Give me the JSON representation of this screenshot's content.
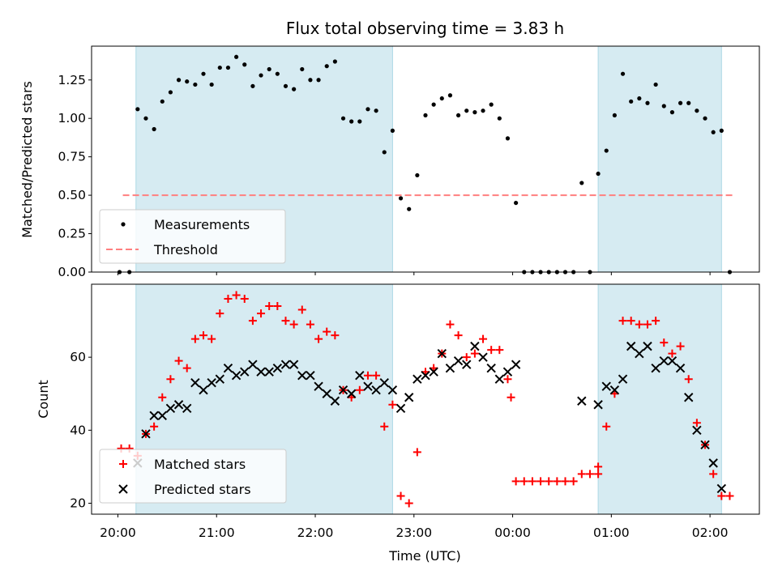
{
  "chart_data": [
    {
      "type": "scatter",
      "title": "Flux total observing time = 3.83 h",
      "xlabel": "",
      "ylabel": "Matched/Predicted stars",
      "ylim": [
        0,
        1.47
      ],
      "yticks": [
        "0.00",
        "0.25",
        "0.50",
        "0.75",
        "1.00",
        "1.25"
      ],
      "xlim": [
        "19:44",
        "02:30"
      ],
      "xticks": [
        "20:00",
        "21:00",
        "22:00",
        "23:00",
        "00:00",
        "01:00",
        "02:00"
      ],
      "shaded_intervals": [
        [
          "20:11",
          "22:47"
        ],
        [
          "00:52",
          "02:07"
        ]
      ],
      "threshold": 0.5,
      "legend": {
        "placement": "lower-left",
        "entries": [
          "Measurements",
          "Threshold"
        ]
      },
      "colors": {
        "measurements": "#000000",
        "threshold": "#ff7f7f",
        "shade": "#add8e6"
      },
      "series": [
        {
          "name": "Measurements",
          "points": [
            [
              "20:01",
              0.0
            ],
            [
              "20:07",
              0.0
            ],
            [
              "20:12",
              1.06
            ],
            [
              "20:17",
              1.0
            ],
            [
              "20:22",
              0.93
            ],
            [
              "20:27",
              1.11
            ],
            [
              "20:32",
              1.17
            ],
            [
              "20:37",
              1.25
            ],
            [
              "20:42",
              1.24
            ],
            [
              "20:47",
              1.22
            ],
            [
              "20:52",
              1.29
            ],
            [
              "20:57",
              1.22
            ],
            [
              "21:02",
              1.33
            ],
            [
              "21:07",
              1.33
            ],
            [
              "21:12",
              1.4
            ],
            [
              "21:17",
              1.35
            ],
            [
              "21:22",
              1.21
            ],
            [
              "21:27",
              1.28
            ],
            [
              "21:32",
              1.32
            ],
            [
              "21:37",
              1.29
            ],
            [
              "21:42",
              1.21
            ],
            [
              "21:47",
              1.19
            ],
            [
              "21:52",
              1.32
            ],
            [
              "21:57",
              1.25
            ],
            [
              "22:02",
              1.25
            ],
            [
              "22:07",
              1.34
            ],
            [
              "22:12",
              1.37
            ],
            [
              "22:17",
              1.0
            ],
            [
              "22:22",
              0.98
            ],
            [
              "22:27",
              0.98
            ],
            [
              "22:32",
              1.06
            ],
            [
              "22:37",
              1.05
            ],
            [
              "22:42",
              0.78
            ],
            [
              "22:47",
              0.92
            ],
            [
              "22:52",
              0.48
            ],
            [
              "22:57",
              0.41
            ],
            [
              "23:02",
              0.63
            ],
            [
              "23:07",
              1.02
            ],
            [
              "23:12",
              1.09
            ],
            [
              "23:17",
              1.13
            ],
            [
              "23:22",
              1.15
            ],
            [
              "23:27",
              1.02
            ],
            [
              "23:32",
              1.05
            ],
            [
              "23:37",
              1.04
            ],
            [
              "23:42",
              1.05
            ],
            [
              "23:47",
              1.09
            ],
            [
              "23:52",
              1.0
            ],
            [
              "23:57",
              0.87
            ],
            [
              "00:02",
              0.45
            ],
            [
              "00:07",
              0.0
            ],
            [
              "00:12",
              0.0
            ],
            [
              "00:17",
              0.0
            ],
            [
              "00:22",
              0.0
            ],
            [
              "00:27",
              0.0
            ],
            [
              "00:32",
              0.0
            ],
            [
              "00:37",
              0.0
            ],
            [
              "00:42",
              0.58
            ],
            [
              "00:47",
              0.0
            ],
            [
              "00:52",
              0.64
            ],
            [
              "00:57",
              0.79
            ],
            [
              "01:02",
              1.02
            ],
            [
              "01:07",
              1.29
            ],
            [
              "01:12",
              1.11
            ],
            [
              "01:17",
              1.13
            ],
            [
              "01:22",
              1.1
            ],
            [
              "01:27",
              1.22
            ],
            [
              "01:32",
              1.08
            ],
            [
              "01:37",
              1.04
            ],
            [
              "01:42",
              1.1
            ],
            [
              "01:47",
              1.1
            ],
            [
              "01:52",
              1.05
            ],
            [
              "01:57",
              1.0
            ],
            [
              "02:02",
              0.91
            ],
            [
              "02:07",
              0.92
            ],
            [
              "02:12",
              0.0
            ]
          ]
        },
        {
          "name": "Threshold",
          "points": [
            [
              "20:03",
              0.5
            ],
            [
              "02:14",
              0.5
            ]
          ]
        }
      ]
    },
    {
      "type": "scatter",
      "title": "",
      "xlabel": "Time (UTC)",
      "ylabel": "Count",
      "ylim": [
        17,
        80
      ],
      "yticks": [
        "20",
        "40",
        "60"
      ],
      "xlim": [
        "19:44",
        "02:30"
      ],
      "xticks": [
        "20:00",
        "21:00",
        "22:00",
        "23:00",
        "00:00",
        "01:00",
        "02:00"
      ],
      "shaded_intervals": [
        [
          "20:11",
          "22:47"
        ],
        [
          "00:52",
          "02:07"
        ]
      ],
      "legend": {
        "placement": "lower-left",
        "entries": [
          "Matched stars",
          "Predicted stars"
        ]
      },
      "colors": {
        "matched": "#ff0000",
        "predicted": "#000000",
        "shade": "#add8e6"
      },
      "series": [
        {
          "name": "Matched stars",
          "points": [
            [
              "20:02",
              35
            ],
            [
              "20:07",
              35
            ],
            [
              "20:12",
              33
            ],
            [
              "20:17",
              39
            ],
            [
              "20:22",
              41
            ],
            [
              "20:27",
              49
            ],
            [
              "20:32",
              54
            ],
            [
              "20:37",
              59
            ],
            [
              "20:42",
              57
            ],
            [
              "20:47",
              65
            ],
            [
              "20:52",
              66
            ],
            [
              "20:57",
              65
            ],
            [
              "21:02",
              72
            ],
            [
              "21:07",
              76
            ],
            [
              "21:12",
              77
            ],
            [
              "21:17",
              76
            ],
            [
              "21:22",
              70
            ],
            [
              "21:27",
              72
            ],
            [
              "21:32",
              74
            ],
            [
              "21:37",
              74
            ],
            [
              "21:42",
              70
            ],
            [
              "21:47",
              69
            ],
            [
              "21:52",
              73
            ],
            [
              "21:57",
              69
            ],
            [
              "22:02",
              65
            ],
            [
              "22:07",
              67
            ],
            [
              "22:12",
              66
            ],
            [
              "22:17",
              51
            ],
            [
              "22:22",
              49
            ],
            [
              "22:27",
              51
            ],
            [
              "22:32",
              55
            ],
            [
              "22:37",
              55
            ],
            [
              "22:42",
              41
            ],
            [
              "22:47",
              47
            ],
            [
              "22:52",
              22
            ],
            [
              "22:57",
              20
            ],
            [
              "23:02",
              34
            ],
            [
              "23:07",
              56
            ],
            [
              "23:12",
              57
            ],
            [
              "23:17",
              61
            ],
            [
              "23:22",
              69
            ],
            [
              "23:27",
              66
            ],
            [
              "23:32",
              60
            ],
            [
              "23:37",
              61
            ],
            [
              "23:42",
              65
            ],
            [
              "23:47",
              62
            ],
            [
              "23:52",
              62
            ],
            [
              "23:57",
              54
            ],
            [
              "23:59",
              49
            ],
            [
              "00:02",
              26
            ],
            [
              "00:07",
              26
            ],
            [
              "00:12",
              26
            ],
            [
              "00:17",
              26
            ],
            [
              "00:22",
              26
            ],
            [
              "00:27",
              26
            ],
            [
              "00:32",
              26
            ],
            [
              "00:37",
              26
            ],
            [
              "00:42",
              28
            ],
            [
              "00:47",
              28
            ],
            [
              "00:52",
              28
            ],
            [
              "00:52",
              30
            ],
            [
              "00:57",
              41
            ],
            [
              "01:02",
              50
            ],
            [
              "01:07",
              70
            ],
            [
              "01:12",
              70
            ],
            [
              "01:17",
              69
            ],
            [
              "01:22",
              69
            ],
            [
              "01:27",
              70
            ],
            [
              "01:32",
              64
            ],
            [
              "01:37",
              61
            ],
            [
              "01:42",
              63
            ],
            [
              "01:47",
              54
            ],
            [
              "01:52",
              42
            ],
            [
              "01:57",
              36
            ],
            [
              "02:02",
              28
            ],
            [
              "02:07",
              22
            ],
            [
              "02:12",
              22
            ]
          ]
        },
        {
          "name": "Predicted stars",
          "points": [
            [
              "20:12",
              31
            ],
            [
              "20:17",
              39
            ],
            [
              "20:22",
              44
            ],
            [
              "20:27",
              44
            ],
            [
              "20:32",
              46
            ],
            [
              "20:37",
              47
            ],
            [
              "20:42",
              46
            ],
            [
              "20:47",
              53
            ],
            [
              "20:52",
              51
            ],
            [
              "20:57",
              53
            ],
            [
              "21:02",
              54
            ],
            [
              "21:07",
              57
            ],
            [
              "21:12",
              55
            ],
            [
              "21:17",
              56
            ],
            [
              "21:22",
              58
            ],
            [
              "21:27",
              56
            ],
            [
              "21:32",
              56
            ],
            [
              "21:37",
              57
            ],
            [
              "21:42",
              58
            ],
            [
              "21:47",
              58
            ],
            [
              "21:52",
              55
            ],
            [
              "21:57",
              55
            ],
            [
              "22:02",
              52
            ],
            [
              "22:07",
              50
            ],
            [
              "22:12",
              48
            ],
            [
              "22:17",
              51
            ],
            [
              "22:22",
              50
            ],
            [
              "22:27",
              55
            ],
            [
              "22:32",
              52
            ],
            [
              "22:37",
              51
            ],
            [
              "22:42",
              53
            ],
            [
              "22:47",
              51
            ],
            [
              "22:52",
              46
            ],
            [
              "22:57",
              49
            ],
            [
              "23:02",
              54
            ],
            [
              "23:07",
              55
            ],
            [
              "23:12",
              56
            ],
            [
              "23:17",
              61
            ],
            [
              "23:22",
              57
            ],
            [
              "23:27",
              59
            ],
            [
              "23:32",
              58
            ],
            [
              "23:37",
              63
            ],
            [
              "23:42",
              60
            ],
            [
              "23:47",
              57
            ],
            [
              "23:52",
              54
            ],
            [
              "23:57",
              56
            ],
            [
              "00:02",
              58
            ],
            [
              "00:42",
              48
            ],
            [
              "00:52",
              47
            ],
            [
              "00:57",
              52
            ],
            [
              "01:02",
              51
            ],
            [
              "01:07",
              54
            ],
            [
              "01:12",
              63
            ],
            [
              "01:17",
              61
            ],
            [
              "01:22",
              63
            ],
            [
              "01:27",
              57
            ],
            [
              "01:32",
              59
            ],
            [
              "01:37",
              59
            ],
            [
              "01:42",
              57
            ],
            [
              "01:47",
              49
            ],
            [
              "01:52",
              40
            ],
            [
              "01:57",
              36
            ],
            [
              "02:02",
              31
            ],
            [
              "02:07",
              24
            ]
          ]
        }
      ]
    }
  ]
}
